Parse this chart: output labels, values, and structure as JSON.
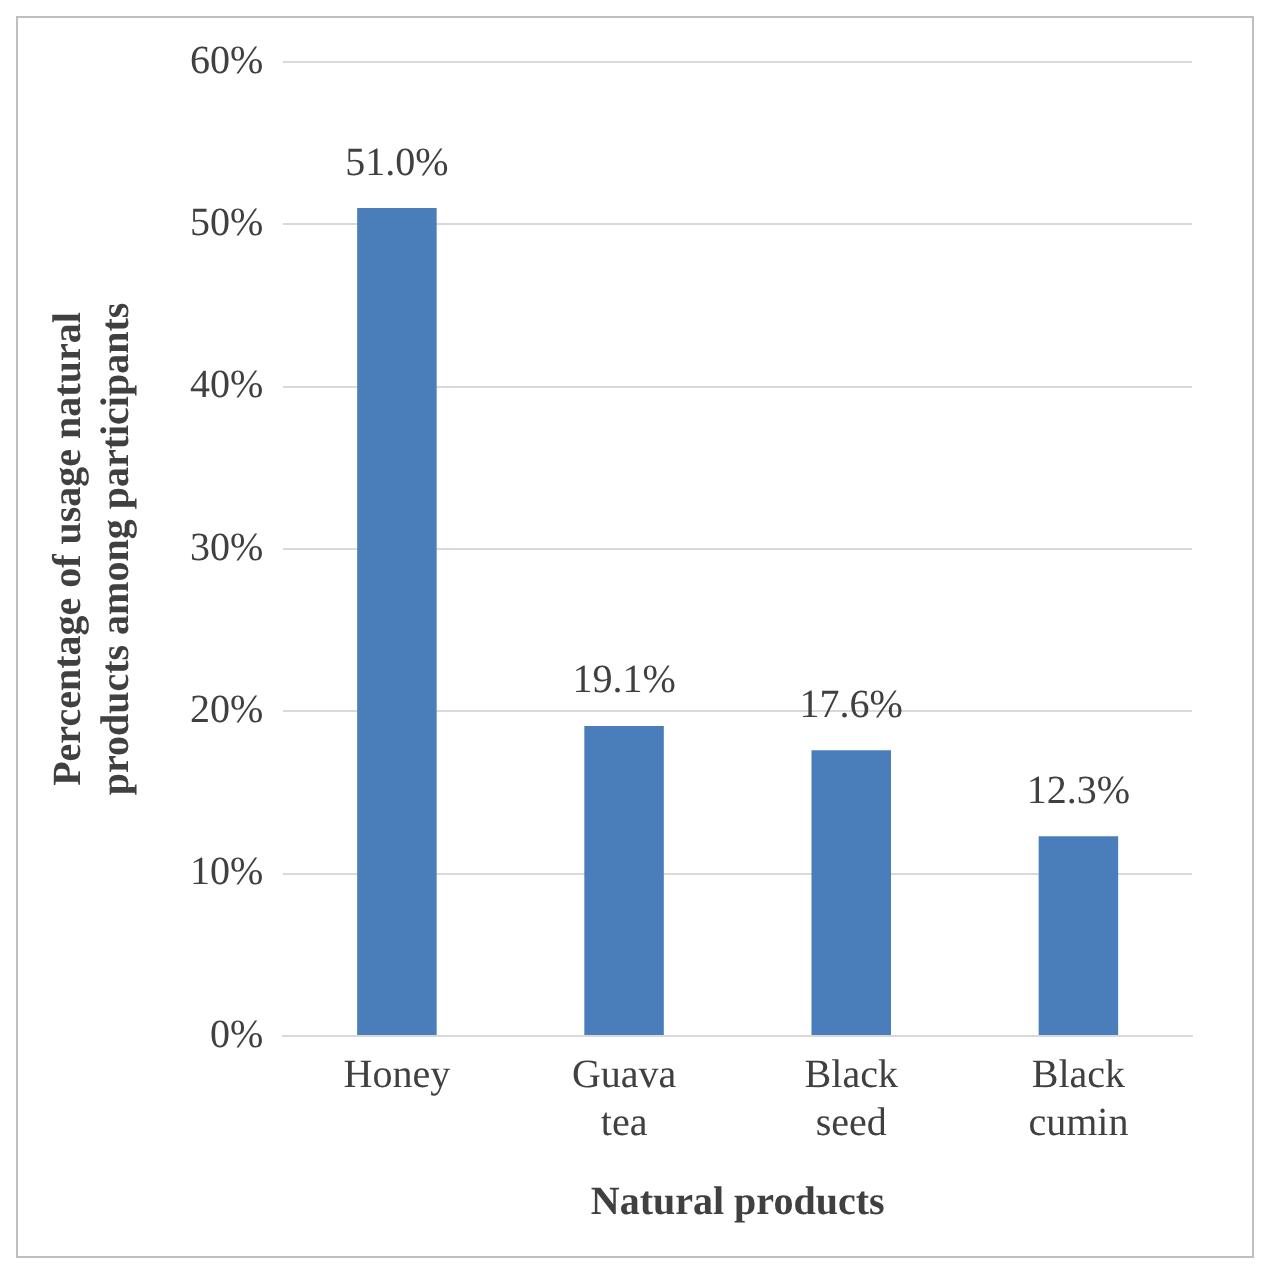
{
  "chart_data": {
    "type": "bar",
    "xlabel": "Natural products",
    "ylabel": "Percentage of usage natural products among participants",
    "categories": [
      "Honey",
      "Guava tea",
      "Black seed",
      "Black cumin"
    ],
    "values": [
      51.0,
      19.1,
      17.6,
      12.3
    ],
    "value_labels": [
      "51.0%",
      "19.1%",
      "17.6%",
      "12.3%"
    ],
    "color": "#4a7ebb",
    "ylim": [
      0,
      60
    ],
    "yticks": [
      {
        "value": 0,
        "label": "0%"
      },
      {
        "value": 10,
        "label": "10%"
      },
      {
        "value": 20,
        "label": "20%"
      },
      {
        "value": 30,
        "label": "30%"
      },
      {
        "value": 40,
        "label": "40%"
      },
      {
        "value": 50,
        "label": "50%"
      },
      {
        "value": 60,
        "label": "60%"
      }
    ],
    "grid": "y",
    "legend": false
  }
}
